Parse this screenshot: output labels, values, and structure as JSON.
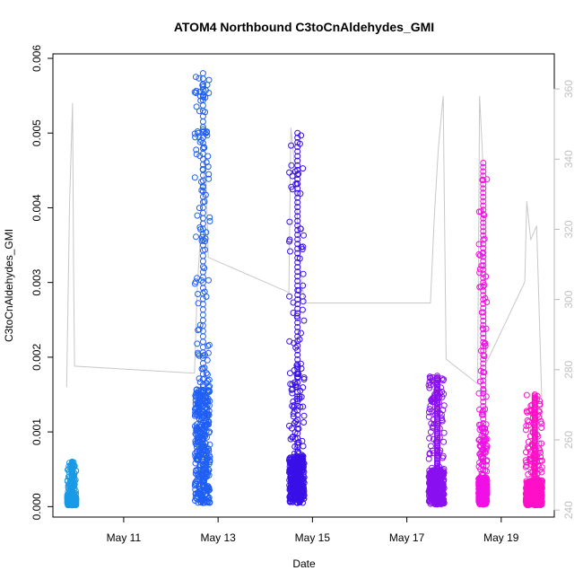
{
  "chart_data": {
    "type": "scatter",
    "title": "ATOM4 Northbound C3toCnAldehydes_GMI",
    "xlabel": "Date",
    "ylabel": "C3toCnAldehydes_GMI",
    "x_tick_labels": [
      "May 11",
      "May 13",
      "May 15",
      "May 17",
      "May 19"
    ],
    "x_ticks": [
      "2018-05-11",
      "2018-05-13",
      "2018-05-15",
      "2018-05-17",
      "2018-05-19"
    ],
    "xlim": [
      "2018-05-09T12:00",
      "2018-05-20T03:00"
    ],
    "ylim": [
      -0.00014,
      0.00606
    ],
    "y_ticks": [
      0.0,
      0.001,
      0.002,
      0.003,
      0.004,
      0.005,
      0.006
    ],
    "y_tick_labels": [
      "0.000",
      "0.001",
      "0.002",
      "0.003",
      "0.004",
      "0.005",
      "0.006"
    ],
    "y2lim": [
      238,
      370
    ],
    "y2_ticks": [
      240,
      260,
      280,
      300,
      320,
      340,
      360
    ],
    "y2_tick_labels": [
      "240",
      "260",
      "280",
      "300",
      "320",
      "340",
      "360"
    ],
    "grid": false,
    "colors": {
      "flight1": "#1a9ae6",
      "flight2": "#1f5ff5",
      "flight3": "#3a10e8",
      "flight4": "#8a10f0",
      "flight5": "#f010e6",
      "flight6": "#ff10c8",
      "secondary_line": "#c8c8c8"
    },
    "series": [
      {
        "start": "2018-05-09T19:20",
        "end": "2018-05-09T23:50",
        "colorKey": "flight1",
        "y_min": 2e-05,
        "y_max": 0.0006,
        "dense_max": 0.0004
      },
      {
        "start": "2018-05-12T12:10",
        "end": "2018-05-12T19:50",
        "colorKey": "flight2",
        "y_min": 5e-05,
        "y_max": 0.0058,
        "dense_max": 0.0046
      },
      {
        "start": "2018-05-14T12:10",
        "end": "2018-05-14T19:50",
        "colorKey": "flight3",
        "y_min": 5e-05,
        "y_max": 0.005,
        "dense_max": 0.0019
      },
      {
        "start": "2018-05-17T11:10",
        "end": "2018-05-17T19:00",
        "colorKey": "flight4",
        "y_min": 3e-05,
        "y_max": 0.00175,
        "dense_max": 0.0014
      },
      {
        "start": "2018-05-18T12:30",
        "end": "2018-05-18T16:50",
        "colorKey": "flight5",
        "y_min": 3e-05,
        "y_max": 0.0046,
        "dense_max": 0.0011
      },
      {
        "start": "2018-05-19T12:30",
        "end": "2018-05-19T20:50",
        "colorKey": "flight6",
        "y_min": 2e-05,
        "y_max": 0.0015,
        "dense_max": 0.001
      }
    ],
    "secondary_series": {
      "axis": "right",
      "color": "#c8c8c8",
      "x": [
        "2018-05-09T19:00",
        "2018-05-09T20:30",
        "2018-05-09T22:00",
        "2018-05-09T22:30",
        "2018-05-09T23:00",
        "2018-05-12T12:00",
        "2018-05-12T13:30",
        "2018-05-12T15:00",
        "2018-05-12T17:30",
        "2018-05-12T19:00",
        "2018-05-14T12:00",
        "2018-05-14T13:00",
        "2018-05-14T15:00",
        "2018-05-14T16:30",
        "2018-05-14T18:30",
        "2018-05-14T20:00",
        "2018-05-17T12:00",
        "2018-05-17T14:00",
        "2018-05-17T16:00",
        "2018-05-17T18:30",
        "2018-05-17T20:00",
        "2018-05-18T12:00",
        "2018-05-18T13:00",
        "2018-05-18T14:30",
        "2018-05-18T16:30",
        "2018-05-19T12:00",
        "2018-05-19T13:00",
        "2018-05-19T15:00",
        "2018-05-19T18:00",
        "2018-05-19T21:00"
      ],
      "y": [
        275,
        328,
        356,
        310,
        281,
        279,
        304,
        318,
        342,
        312,
        302,
        349,
        338,
        321,
        305,
        299,
        299,
        324,
        343,
        358,
        283,
        276,
        358,
        341,
        282,
        305,
        328,
        317,
        321,
        265
      ]
    }
  }
}
